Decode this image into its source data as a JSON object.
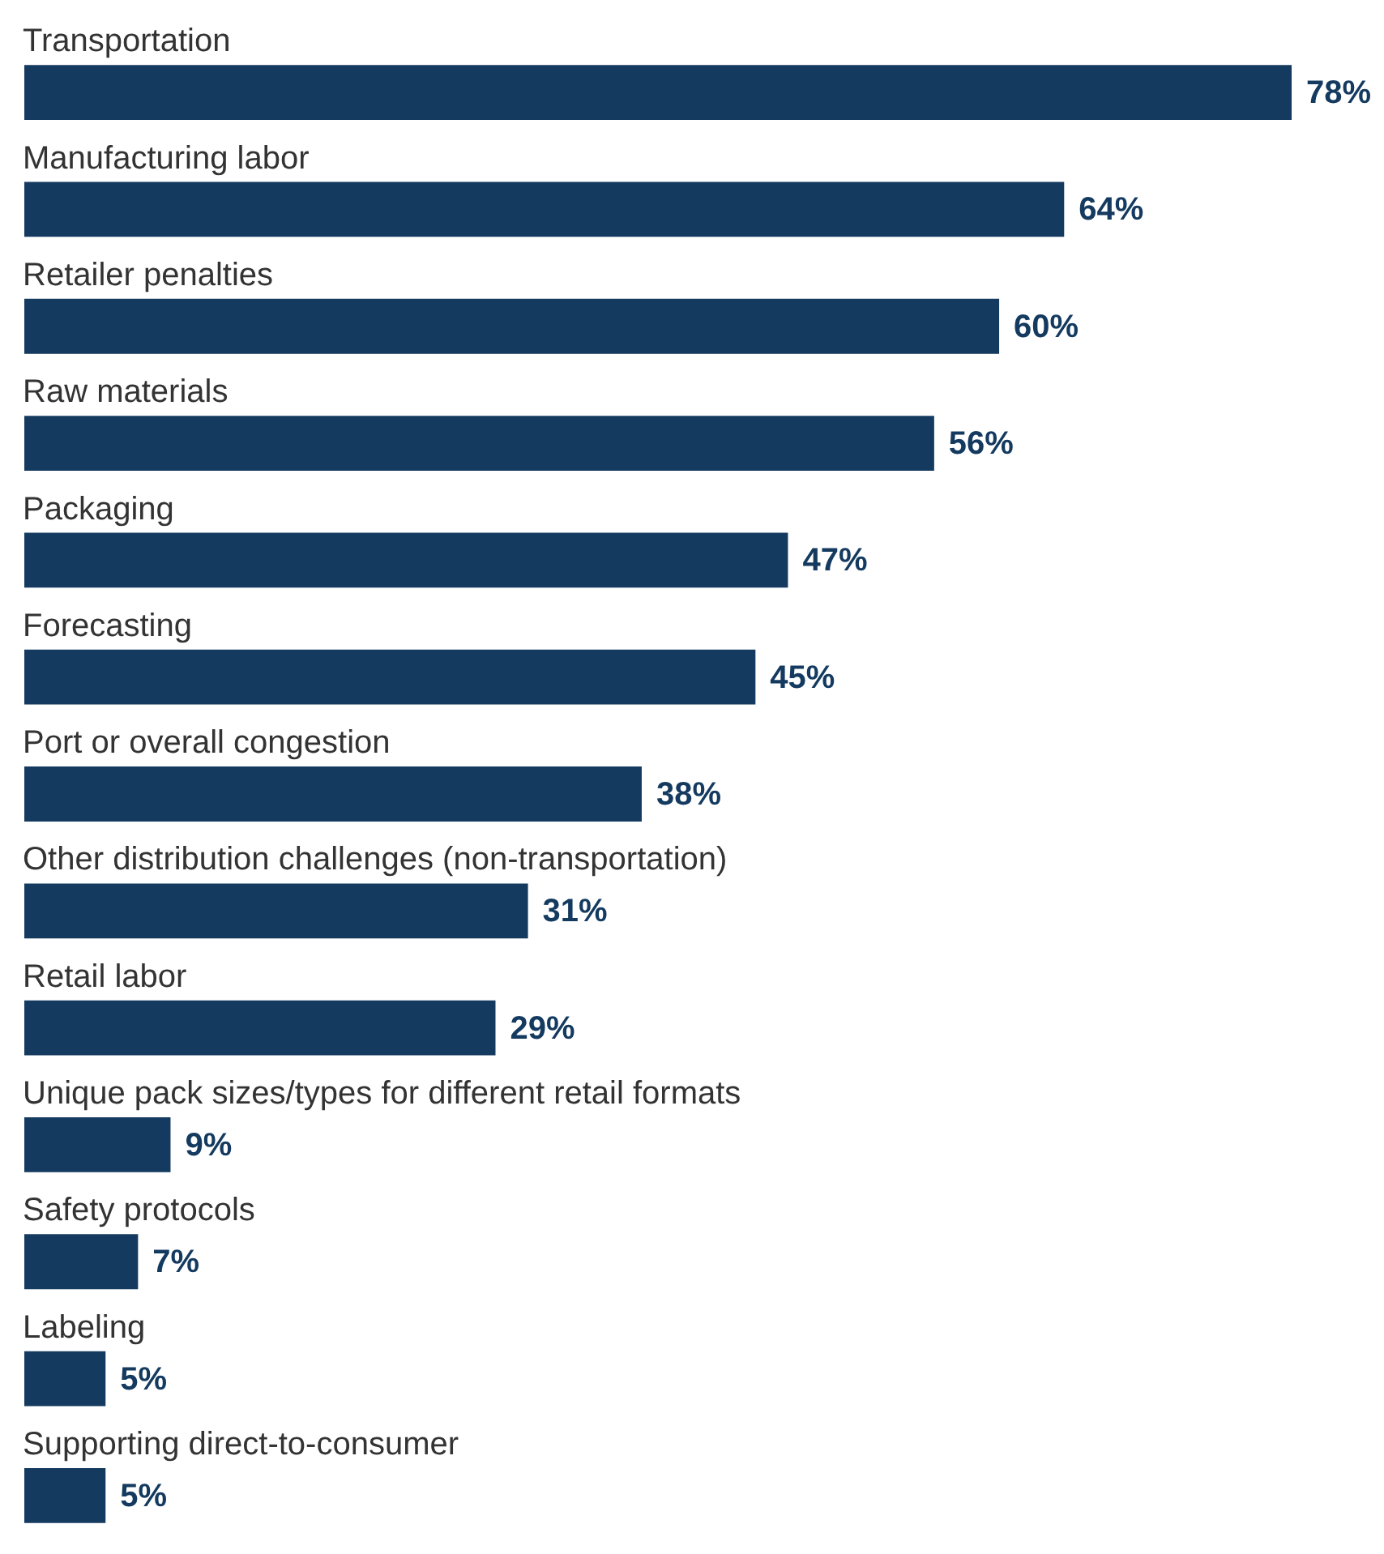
{
  "chart_data": {
    "type": "bar",
    "orientation": "horizontal",
    "categories": [
      "Transportation",
      "Manufacturing labor",
      "Retailer penalties",
      "Raw materials",
      "Packaging",
      "Forecasting",
      "Port or overall congestion",
      "Other distribution challenges (non-transportation)",
      "Retail labor",
      "Unique pack sizes/types for different retail formats",
      "Safety protocols",
      "Labeling",
      "Supporting direct-to-consumer"
    ],
    "values": [
      78,
      64,
      60,
      56,
      47,
      45,
      38,
      31,
      29,
      9,
      7,
      5,
      5
    ],
    "value_labels": [
      "78%",
      "64%",
      "60%",
      "56%",
      "47%",
      "45%",
      "38%",
      "31%",
      "29%",
      "9%",
      "7%",
      "5%",
      "5%"
    ],
    "color": "#143a5f"
  }
}
